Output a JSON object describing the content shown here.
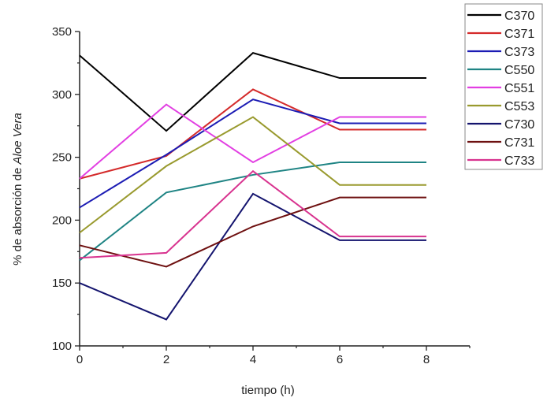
{
  "chart_data": {
    "type": "line",
    "title": "",
    "xlabel": "tiempo (h)",
    "ylabel_prefix": "% de absorción de ",
    "ylabel_italic": "Aloe Vera",
    "x": [
      0,
      2,
      4,
      6,
      8
    ],
    "xlim": [
      0,
      9.0
    ],
    "ylim": [
      100,
      350
    ],
    "xticks": [
      0,
      2,
      4,
      6,
      8
    ],
    "yticks": [
      100,
      150,
      200,
      250,
      300,
      350
    ],
    "grid": false,
    "legend_position": "top-right-outside",
    "series": [
      {
        "name": "C370",
        "color": "#000000",
        "values": [
          331,
          271,
          333,
          313,
          313
        ]
      },
      {
        "name": "C371",
        "color": "#d42a2a",
        "values": [
          233,
          251,
          304,
          272,
          272
        ]
      },
      {
        "name": "C373",
        "color": "#1c1cb4",
        "values": [
          210,
          252,
          296,
          277,
          277
        ]
      },
      {
        "name": "C550",
        "color": "#1f8484",
        "values": [
          168,
          222,
          236,
          246,
          246
        ]
      },
      {
        "name": "C551",
        "color": "#e23fe2",
        "values": [
          233,
          292,
          246,
          282,
          282
        ]
      },
      {
        "name": "C553",
        "color": "#999a2e",
        "values": [
          190,
          243,
          282,
          228,
          228
        ]
      },
      {
        "name": "C730",
        "color": "#14146e",
        "values": [
          150,
          121,
          221,
          184,
          184
        ]
      },
      {
        "name": "C731",
        "color": "#6e1010",
        "values": [
          180,
          163,
          195,
          218,
          218
        ]
      },
      {
        "name": "C733",
        "color": "#d8338f",
        "values": [
          170,
          174,
          239,
          187,
          187
        ]
      }
    ]
  }
}
